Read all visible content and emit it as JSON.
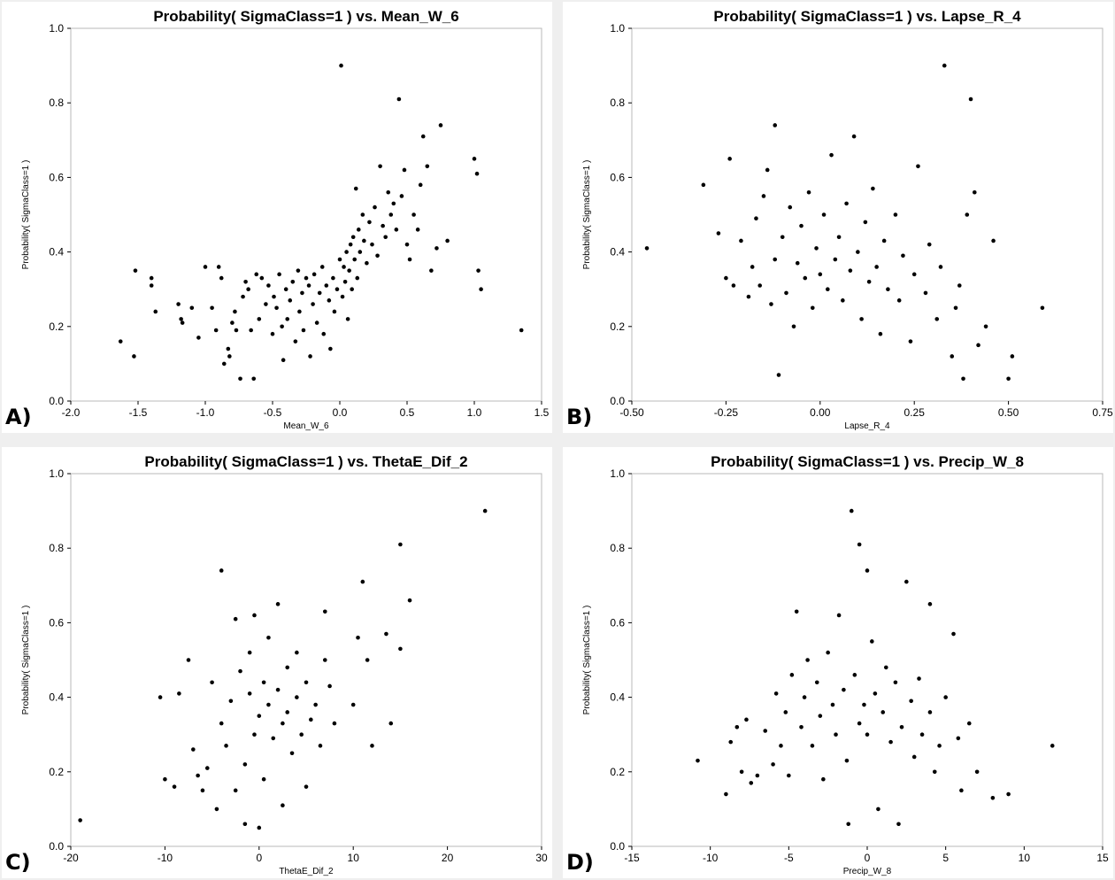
{
  "chart_data": [
    {
      "panel_label": "A)",
      "type": "scatter",
      "title": "Probability( SigmaClass=1 ) vs. Mean_W_6",
      "xlabel": "Mean_W_6",
      "ylabel": "Probability( SigmaClass=1 )",
      "xlim": [
        -2.0,
        1.5
      ],
      "ylim": [
        0.0,
        1.0
      ],
      "xticks": [
        "-2.0",
        "-1.5",
        "-1.0",
        "-0.5",
        "0.0",
        "0.5",
        "1.0",
        "1.5"
      ],
      "yticks": [
        "0.0",
        "0.2",
        "0.4",
        "0.6",
        "0.8",
        "1.0"
      ],
      "points": [
        [
          -1.63,
          0.16
        ],
        [
          -1.53,
          0.12
        ],
        [
          -1.52,
          0.35
        ],
        [
          -1.4,
          0.33
        ],
        [
          -1.4,
          0.31
        ],
        [
          -1.37,
          0.24
        ],
        [
          -1.2,
          0.26
        ],
        [
          -1.18,
          0.22
        ],
        [
          -1.17,
          0.21
        ],
        [
          -1.1,
          0.25
        ],
        [
          -1.05,
          0.17
        ],
        [
          -1.0,
          0.36
        ],
        [
          -0.95,
          0.25
        ],
        [
          -0.92,
          0.19
        ],
        [
          -0.9,
          0.36
        ],
        [
          -0.88,
          0.33
        ],
        [
          -0.86,
          0.1
        ],
        [
          -0.83,
          0.14
        ],
        [
          -0.82,
          0.12
        ],
        [
          -0.8,
          0.21
        ],
        [
          -0.78,
          0.24
        ],
        [
          -0.77,
          0.19
        ],
        [
          -0.74,
          0.06
        ],
        [
          -0.72,
          0.28
        ],
        [
          -0.7,
          0.32
        ],
        [
          -0.68,
          0.3
        ],
        [
          -0.66,
          0.19
        ],
        [
          -0.64,
          0.06
        ],
        [
          -0.62,
          0.34
        ],
        [
          -0.6,
          0.22
        ],
        [
          -0.58,
          0.33
        ],
        [
          -0.55,
          0.26
        ],
        [
          -0.53,
          0.31
        ],
        [
          -0.5,
          0.18
        ],
        [
          -0.49,
          0.28
        ],
        [
          -0.47,
          0.25
        ],
        [
          -0.45,
          0.34
        ],
        [
          -0.43,
          0.2
        ],
        [
          -0.42,
          0.11
        ],
        [
          -0.4,
          0.3
        ],
        [
          -0.39,
          0.22
        ],
        [
          -0.37,
          0.27
        ],
        [
          -0.35,
          0.32
        ],
        [
          -0.33,
          0.16
        ],
        [
          -0.31,
          0.35
        ],
        [
          -0.3,
          0.24
        ],
        [
          -0.28,
          0.29
        ],
        [
          -0.27,
          0.19
        ],
        [
          -0.25,
          0.33
        ],
        [
          -0.23,
          0.31
        ],
        [
          -0.22,
          0.12
        ],
        [
          -0.2,
          0.26
        ],
        [
          -0.19,
          0.34
        ],
        [
          -0.17,
          0.21
        ],
        [
          -0.15,
          0.29
        ],
        [
          -0.13,
          0.36
        ],
        [
          -0.12,
          0.18
        ],
        [
          -0.1,
          0.31
        ],
        [
          -0.08,
          0.27
        ],
        [
          -0.07,
          0.14
        ],
        [
          -0.05,
          0.33
        ],
        [
          -0.04,
          0.24
        ],
        [
          -0.02,
          0.3
        ],
        [
          0.0,
          0.38
        ],
        [
          0.01,
          0.9
        ],
        [
          0.02,
          0.28
        ],
        [
          0.03,
          0.36
        ],
        [
          0.04,
          0.32
        ],
        [
          0.05,
          0.4
        ],
        [
          0.06,
          0.22
        ],
        [
          0.07,
          0.35
        ],
        [
          0.08,
          0.42
        ],
        [
          0.09,
          0.3
        ],
        [
          0.1,
          0.44
        ],
        [
          0.11,
          0.38
        ],
        [
          0.12,
          0.57
        ],
        [
          0.13,
          0.33
        ],
        [
          0.14,
          0.46
        ],
        [
          0.15,
          0.4
        ],
        [
          0.17,
          0.5
        ],
        [
          0.18,
          0.43
        ],
        [
          0.2,
          0.37
        ],
        [
          0.22,
          0.48
        ],
        [
          0.24,
          0.42
        ],
        [
          0.26,
          0.52
        ],
        [
          0.28,
          0.39
        ],
        [
          0.3,
          0.63
        ],
        [
          0.32,
          0.47
        ],
        [
          0.34,
          0.44
        ],
        [
          0.36,
          0.56
        ],
        [
          0.38,
          0.5
        ],
        [
          0.4,
          0.53
        ],
        [
          0.42,
          0.46
        ],
        [
          0.44,
          0.81
        ],
        [
          0.46,
          0.55
        ],
        [
          0.48,
          0.62
        ],
        [
          0.5,
          0.42
        ],
        [
          0.52,
          0.38
        ],
        [
          0.55,
          0.5
        ],
        [
          0.58,
          0.46
        ],
        [
          0.6,
          0.58
        ],
        [
          0.62,
          0.71
        ],
        [
          0.65,
          0.63
        ],
        [
          0.68,
          0.35
        ],
        [
          0.72,
          0.41
        ],
        [
          0.75,
          0.74
        ],
        [
          0.8,
          0.43
        ],
        [
          1.0,
          0.65
        ],
        [
          1.02,
          0.61
        ],
        [
          1.03,
          0.35
        ],
        [
          1.05,
          0.3
        ],
        [
          1.35,
          0.19
        ]
      ]
    },
    {
      "panel_label": "B)",
      "type": "scatter",
      "title": "Probability( SigmaClass=1 ) vs. Lapse_R_4",
      "xlabel": "Lapse_R_4",
      "ylabel": "Probability( SigmaClass=1 )",
      "xlim": [
        -0.5,
        0.75
      ],
      "ylim": [
        0.0,
        1.0
      ],
      "xticks": [
        "-0.50",
        "-0.25",
        "0.00",
        "0.25",
        "0.50",
        "0.75"
      ],
      "yticks": [
        "0.0",
        "0.2",
        "0.4",
        "0.6",
        "0.8",
        "1.0"
      ],
      "points": [
        [
          -0.46,
          0.41
        ],
        [
          -0.31,
          0.58
        ],
        [
          -0.27,
          0.45
        ],
        [
          -0.25,
          0.33
        ],
        [
          -0.24,
          0.65
        ],
        [
          -0.23,
          0.31
        ],
        [
          -0.21,
          0.43
        ],
        [
          -0.19,
          0.28
        ],
        [
          -0.18,
          0.36
        ],
        [
          -0.17,
          0.49
        ],
        [
          -0.16,
          0.31
        ],
        [
          -0.15,
          0.55
        ],
        [
          -0.14,
          0.62
        ],
        [
          -0.13,
          0.26
        ],
        [
          -0.12,
          0.74
        ],
        [
          -0.12,
          0.38
        ],
        [
          -0.11,
          0.07
        ],
        [
          -0.1,
          0.44
        ],
        [
          -0.09,
          0.29
        ],
        [
          -0.08,
          0.52
        ],
        [
          -0.07,
          0.2
        ],
        [
          -0.06,
          0.37
        ],
        [
          -0.05,
          0.47
        ],
        [
          -0.04,
          0.33
        ],
        [
          -0.03,
          0.56
        ],
        [
          -0.02,
          0.25
        ],
        [
          -0.01,
          0.41
        ],
        [
          0.0,
          0.34
        ],
        [
          0.01,
          0.5
        ],
        [
          0.02,
          0.3
        ],
        [
          0.03,
          0.66
        ],
        [
          0.04,
          0.38
        ],
        [
          0.05,
          0.44
        ],
        [
          0.06,
          0.27
        ],
        [
          0.07,
          0.53
        ],
        [
          0.08,
          0.35
        ],
        [
          0.09,
          0.71
        ],
        [
          0.1,
          0.4
        ],
        [
          0.11,
          0.22
        ],
        [
          0.12,
          0.48
        ],
        [
          0.13,
          0.32
        ],
        [
          0.14,
          0.57
        ],
        [
          0.15,
          0.36
        ],
        [
          0.16,
          0.18
        ],
        [
          0.17,
          0.43
        ],
        [
          0.18,
          0.3
        ],
        [
          0.2,
          0.5
        ],
        [
          0.21,
          0.27
        ],
        [
          0.22,
          0.39
        ],
        [
          0.24,
          0.16
        ],
        [
          0.25,
          0.34
        ],
        [
          0.26,
          0.63
        ],
        [
          0.28,
          0.29
        ],
        [
          0.29,
          0.42
        ],
        [
          0.31,
          0.22
        ],
        [
          0.32,
          0.36
        ],
        [
          0.33,
          0.9
        ],
        [
          0.35,
          0.12
        ],
        [
          0.36,
          0.25
        ],
        [
          0.37,
          0.31
        ],
        [
          0.38,
          0.06
        ],
        [
          0.39,
          0.5
        ],
        [
          0.4,
          0.81
        ],
        [
          0.41,
          0.56
        ],
        [
          0.42,
          0.15
        ],
        [
          0.44,
          0.2
        ],
        [
          0.46,
          0.43
        ],
        [
          0.5,
          0.06
        ],
        [
          0.51,
          0.12
        ],
        [
          0.59,
          0.25
        ]
      ]
    },
    {
      "panel_label": "C)",
      "type": "scatter",
      "title": "Probability( SigmaClass=1 ) vs. ThetaE_Dif_2",
      "xlabel": "ThetaE_Dif_2",
      "ylabel": "Probability( SigmaClass=1 )",
      "xlim": [
        -20,
        30
      ],
      "ylim": [
        0.0,
        1.0
      ],
      "xticks": [
        "-20",
        "-10",
        "0",
        "10",
        "20",
        "30"
      ],
      "yticks": [
        "0.0",
        "0.2",
        "0.4",
        "0.6",
        "0.8",
        "1.0"
      ],
      "points": [
        [
          -19,
          0.07
        ],
        [
          -10.5,
          0.4
        ],
        [
          -10,
          0.18
        ],
        [
          -9,
          0.16
        ],
        [
          -8.5,
          0.41
        ],
        [
          -7.5,
          0.5
        ],
        [
          -7,
          0.26
        ],
        [
          -6.5,
          0.19
        ],
        [
          -6,
          0.15
        ],
        [
          -5.5,
          0.21
        ],
        [
          -5,
          0.44
        ],
        [
          -4.5,
          0.1
        ],
        [
          -4,
          0.74
        ],
        [
          -4,
          0.33
        ],
        [
          -3.5,
          0.27
        ],
        [
          -3,
          0.39
        ],
        [
          -2.5,
          0.15
        ],
        [
          -2.5,
          0.61
        ],
        [
          -2,
          0.47
        ],
        [
          -1.5,
          0.22
        ],
        [
          -1.5,
          0.06
        ],
        [
          -1,
          0.41
        ],
        [
          -1,
          0.52
        ],
        [
          -0.5,
          0.3
        ],
        [
          -0.5,
          0.62
        ],
        [
          0,
          0.35
        ],
        [
          0,
          0.05
        ],
        [
          0.5,
          0.44
        ],
        [
          0.5,
          0.18
        ],
        [
          1,
          0.38
        ],
        [
          1,
          0.56
        ],
        [
          1.5,
          0.29
        ],
        [
          2,
          0.42
        ],
        [
          2,
          0.65
        ],
        [
          2.5,
          0.33
        ],
        [
          2.5,
          0.11
        ],
        [
          3,
          0.36
        ],
        [
          3,
          0.48
        ],
        [
          3.5,
          0.25
        ],
        [
          4,
          0.4
        ],
        [
          4,
          0.52
        ],
        [
          4.5,
          0.3
        ],
        [
          5,
          0.44
        ],
        [
          5,
          0.16
        ],
        [
          5.5,
          0.34
        ],
        [
          6,
          0.38
        ],
        [
          6.5,
          0.27
        ],
        [
          7,
          0.63
        ],
        [
          7,
          0.5
        ],
        [
          7.5,
          0.43
        ],
        [
          8,
          0.33
        ],
        [
          10,
          0.38
        ],
        [
          10.5,
          0.56
        ],
        [
          11,
          0.71
        ],
        [
          11.5,
          0.5
        ],
        [
          12,
          0.27
        ],
        [
          13.5,
          0.57
        ],
        [
          14,
          0.33
        ],
        [
          15,
          0.53
        ],
        [
          15,
          0.81
        ],
        [
          16,
          0.66
        ],
        [
          24,
          0.9
        ]
      ]
    },
    {
      "panel_label": "D)",
      "type": "scatter",
      "title": "Probability( SigmaClass=1 ) vs. Precip_W_8",
      "xlabel": "Precip_W_8",
      "ylabel": "Probability( SigmaClass=1 )",
      "xlim": [
        -15,
        15
      ],
      "ylim": [
        0.0,
        1.0
      ],
      "xticks": [
        "-15",
        "-10",
        "-5",
        "0",
        "5",
        "10",
        "15"
      ],
      "yticks": [
        "0.0",
        "0.2",
        "0.4",
        "0.6",
        "0.8",
        "1.0"
      ],
      "points": [
        [
          -10.8,
          0.23
        ],
        [
          -9,
          0.14
        ],
        [
          -8.7,
          0.28
        ],
        [
          -8.3,
          0.32
        ],
        [
          -8,
          0.2
        ],
        [
          -7.7,
          0.34
        ],
        [
          -7.4,
          0.17
        ],
        [
          -7,
          0.19
        ],
        [
          -6.5,
          0.31
        ],
        [
          -6,
          0.22
        ],
        [
          -5.8,
          0.41
        ],
        [
          -5.5,
          0.27
        ],
        [
          -5.2,
          0.36
        ],
        [
          -5,
          0.19
        ],
        [
          -4.8,
          0.46
        ],
        [
          -4.5,
          0.63
        ],
        [
          -4.2,
          0.32
        ],
        [
          -4,
          0.4
        ],
        [
          -3.8,
          0.5
        ],
        [
          -3.5,
          0.27
        ],
        [
          -3.2,
          0.44
        ],
        [
          -3,
          0.35
        ],
        [
          -2.8,
          0.18
        ],
        [
          -2.5,
          0.52
        ],
        [
          -2.2,
          0.38
        ],
        [
          -2,
          0.3
        ],
        [
          -1.8,
          0.62
        ],
        [
          -1.5,
          0.42
        ],
        [
          -1.3,
          0.23
        ],
        [
          -1.2,
          0.06
        ],
        [
          -1,
          0.9
        ],
        [
          -0.8,
          0.46
        ],
        [
          -0.5,
          0.33
        ],
        [
          -0.5,
          0.81
        ],
        [
          -0.2,
          0.38
        ],
        [
          0,
          0.74
        ],
        [
          0,
          0.3
        ],
        [
          0.3,
          0.55
        ],
        [
          0.5,
          0.41
        ],
        [
          0.7,
          0.1
        ],
        [
          1,
          0.36
        ],
        [
          1.2,
          0.48
        ],
        [
          1.5,
          0.28
        ],
        [
          1.8,
          0.44
        ],
        [
          2,
          0.06
        ],
        [
          2.2,
          0.32
        ],
        [
          2.5,
          0.71
        ],
        [
          2.8,
          0.39
        ],
        [
          3,
          0.24
        ],
        [
          3.3,
          0.45
        ],
        [
          3.5,
          0.3
        ],
        [
          4,
          0.65
        ],
        [
          4,
          0.36
        ],
        [
          4.3,
          0.2
        ],
        [
          4.6,
          0.27
        ],
        [
          5,
          0.4
        ],
        [
          5.5,
          0.57
        ],
        [
          5.8,
          0.29
        ],
        [
          6,
          0.15
        ],
        [
          6.5,
          0.33
        ],
        [
          7,
          0.2
        ],
        [
          8,
          0.13
        ],
        [
          9,
          0.14
        ],
        [
          11.8,
          0.27
        ]
      ]
    }
  ]
}
